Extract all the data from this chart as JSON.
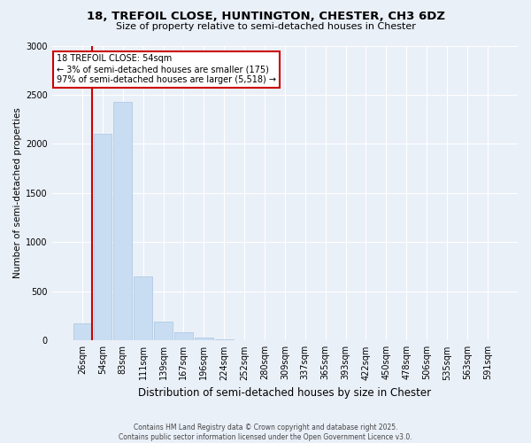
{
  "title1": "18, TREFOIL CLOSE, HUNTINGTON, CHESTER, CH3 6DZ",
  "title2": "Size of property relative to semi-detached houses in Chester",
  "xlabel": "Distribution of semi-detached houses by size in Chester",
  "ylabel": "Number of semi-detached properties",
  "categories": [
    "26sqm",
    "54sqm",
    "83sqm",
    "111sqm",
    "139sqm",
    "167sqm",
    "196sqm",
    "224sqm",
    "252sqm",
    "280sqm",
    "309sqm",
    "337sqm",
    "365sqm",
    "393sqm",
    "422sqm",
    "450sqm",
    "478sqm",
    "506sqm",
    "535sqm",
    "563sqm",
    "591sqm"
  ],
  "values": [
    175,
    2100,
    2430,
    650,
    190,
    80,
    30,
    10,
    5,
    0,
    0,
    0,
    0,
    0,
    0,
    0,
    0,
    0,
    0,
    0,
    0
  ],
  "bar_color": "#c9ddf2",
  "bar_edge_color": "#a8c4e0",
  "vline_color": "#cc0000",
  "annotation_title": "18 TREFOIL CLOSE: 54sqm",
  "annotation_line1": "← 3% of semi-detached houses are smaller (175)",
  "annotation_line2": "97% of semi-detached houses are larger (5,518) →",
  "annotation_box_color": "#ffffff",
  "annotation_box_edge": "#cc0000",
  "footer1": "Contains HM Land Registry data © Crown copyright and database right 2025.",
  "footer2": "Contains public sector information licensed under the Open Government Licence v3.0.",
  "bg_color": "#eaf0f8",
  "ylim": [
    0,
    3000
  ],
  "yticks": [
    0,
    500,
    1000,
    1500,
    2000,
    2500,
    3000
  ],
  "title1_fontsize": 9.5,
  "title2_fontsize": 8,
  "ylabel_fontsize": 7.5,
  "xlabel_fontsize": 8.5,
  "tick_fontsize": 7,
  "footer_fontsize": 5.5
}
